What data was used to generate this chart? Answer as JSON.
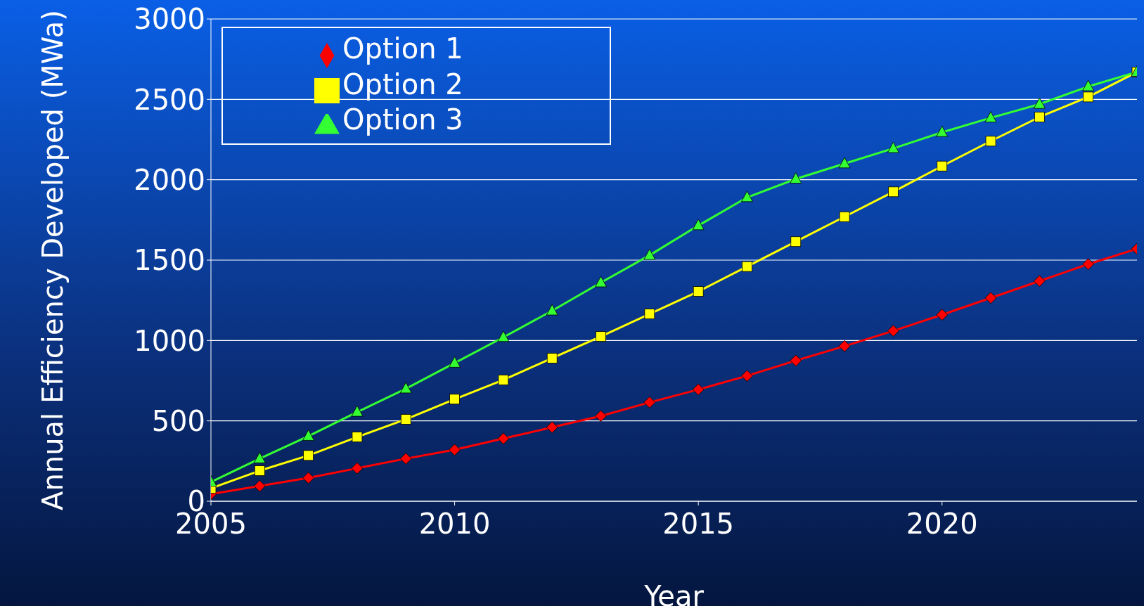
{
  "chart_data": {
    "type": "line",
    "xlabel": "Year",
    "ylabel": "Annual Efficiency Developed (MWa)",
    "x": [
      2005,
      2006,
      2007,
      2008,
      2009,
      2010,
      2011,
      2012,
      2013,
      2014,
      2015,
      2016,
      2017,
      2018,
      2019,
      2020,
      2021,
      2022,
      2023,
      2024
    ],
    "xlim": [
      2005,
      2024
    ],
    "xticks": [
      2005,
      2010,
      2015,
      2020
    ],
    "ylim": [
      0,
      3000
    ],
    "yticks": [
      0,
      500,
      1000,
      1500,
      2000,
      2500,
      3000
    ],
    "grid": "y",
    "legend": "top left",
    "series": [
      {
        "name": "Option 1",
        "color": "#ff0000",
        "marker": "diamond",
        "values": [
          45,
          95,
          145,
          205,
          265,
          320,
          390,
          460,
          530,
          615,
          695,
          780,
          875,
          965,
          1060,
          1160,
          1265,
          1370,
          1475,
          1570
        ]
      },
      {
        "name": "Option 2",
        "color": "#ffff00",
        "marker": "square",
        "values": [
          80,
          190,
          285,
          400,
          510,
          635,
          755,
          890,
          1025,
          1165,
          1305,
          1460,
          1615,
          1770,
          1925,
          2085,
          2240,
          2390,
          2515,
          2670
        ]
      },
      {
        "name": "Option 3",
        "color": "#33ff33",
        "marker": "triangle",
        "values": [
          120,
          265,
          405,
          555,
          700,
          860,
          1020,
          1185,
          1360,
          1530,
          1715,
          1890,
          2005,
          2100,
          2195,
          2295,
          2385,
          2470,
          2580,
          2670
        ]
      }
    ]
  }
}
